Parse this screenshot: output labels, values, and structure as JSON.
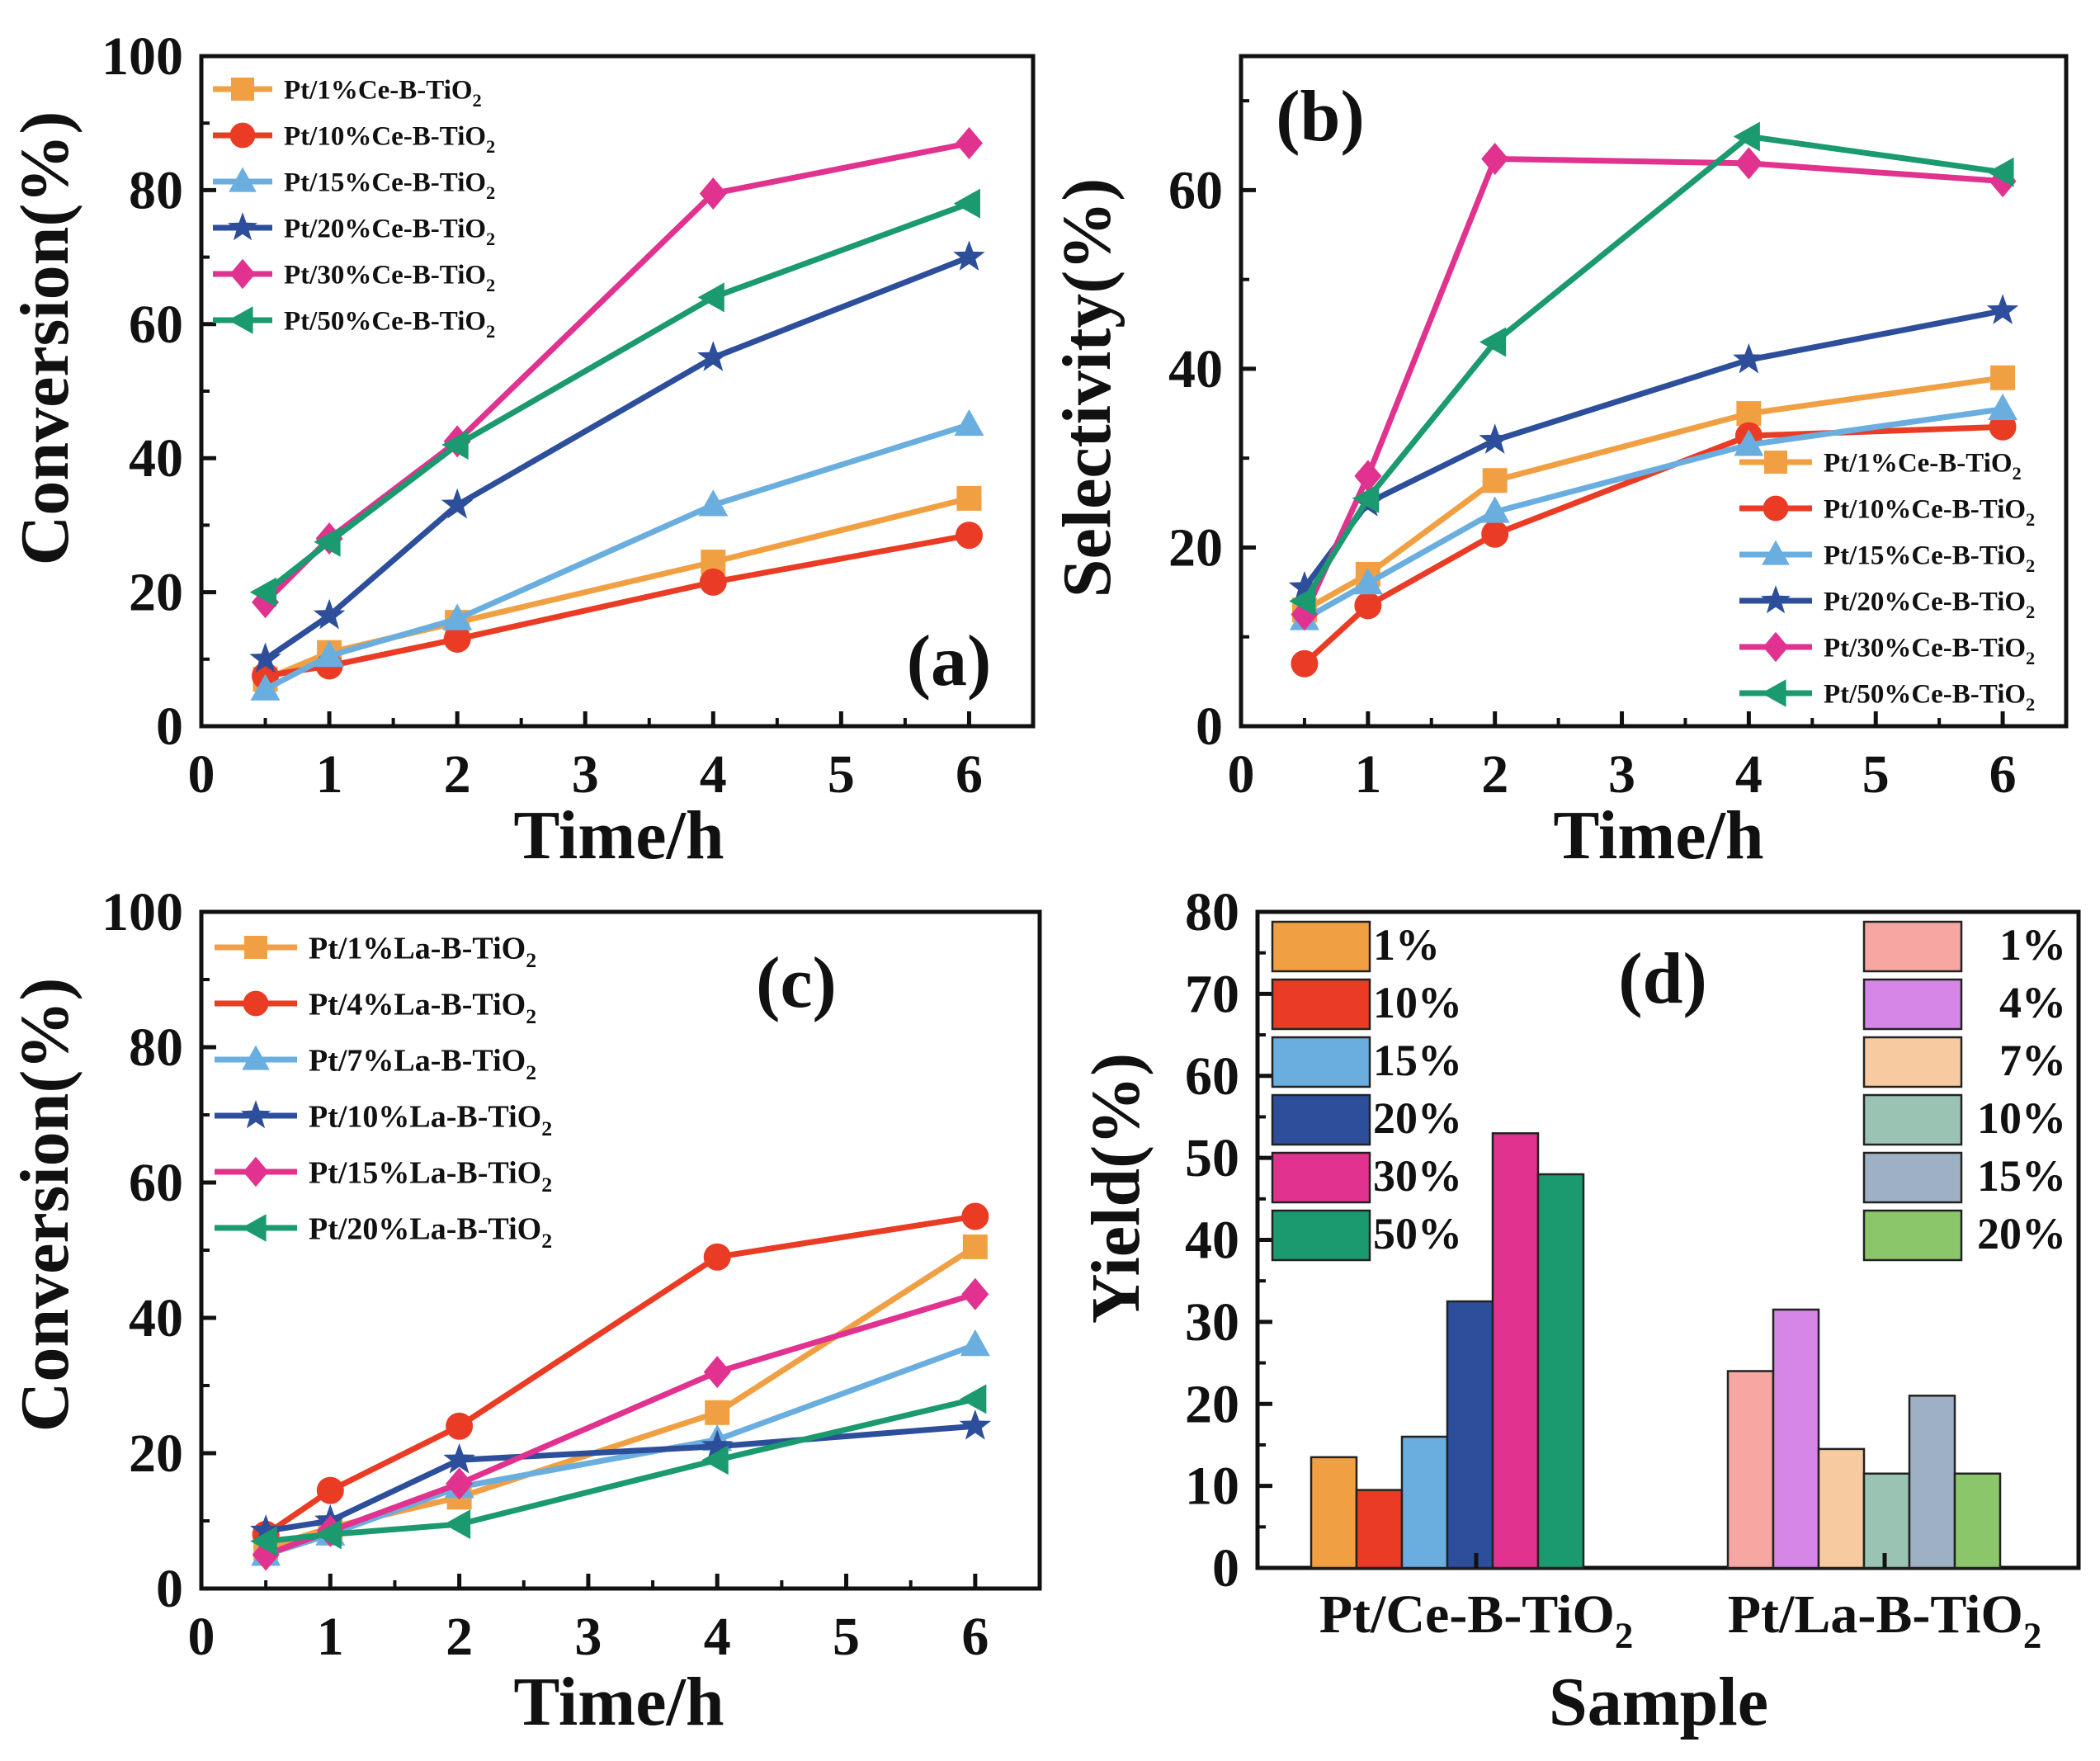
{
  "colors": {
    "ce1": "#f0a043",
    "ce10": "#ea3b24",
    "ce15": "#6aaee0",
    "ce20": "#2d4e9b",
    "ce30": "#e0328e",
    "ce50": "#1a9a6e",
    "la1": "#f6a7a2",
    "la4": "#d586e6",
    "la7": "#f8caa0",
    "la10": "#9bc3b4",
    "la15": "#9eb1c4",
    "la20": "#8cc66a"
  },
  "chart_data": [
    {
      "panel": "(a)",
      "type": "line",
      "xlabel": "Time/h",
      "ylabel": "Conversion(%)",
      "xlim": [
        0,
        6.5
      ],
      "ylim": [
        0,
        100
      ],
      "xticks": [
        0,
        1,
        2,
        3,
        4,
        5,
        6
      ],
      "yticks": [
        0,
        20,
        40,
        60,
        80,
        100
      ],
      "legend_position": "top-left",
      "series": [
        {
          "name": "Pt/1%Ce-B-TiO",
          "sub": "2",
          "marker": "square",
          "color": "#f0a043",
          "x": [
            0.5,
            1,
            2,
            4,
            6
          ],
          "y": [
            7,
            11,
            15.5,
            24.5,
            34
          ]
        },
        {
          "name": "Pt/10%Ce-B-TiO",
          "sub": "2",
          "marker": "circle",
          "color": "#ea3b24",
          "x": [
            0.5,
            1,
            2,
            4,
            6
          ],
          "y": [
            7.5,
            9,
            13,
            21.5,
            28.5
          ]
        },
        {
          "name": "Pt/15%Ce-B-TiO",
          "sub": "2",
          "marker": "triangle",
          "color": "#6aaee0",
          "x": [
            0.5,
            1,
            2,
            4,
            6
          ],
          "y": [
            5.5,
            10.5,
            16,
            33,
            45
          ]
        },
        {
          "name": "Pt/20%Ce-B-TiO",
          "sub": "2",
          "marker": "star",
          "color": "#2d4e9b",
          "x": [
            0.5,
            1,
            2,
            4,
            6
          ],
          "y": [
            10,
            16.5,
            33,
            55,
            70
          ]
        },
        {
          "name": "Pt/30%Ce-B-TiO",
          "sub": "2",
          "marker": "diamond",
          "color": "#e0328e",
          "x": [
            0.5,
            1,
            2,
            4,
            6
          ],
          "y": [
            18.5,
            28,
            42.5,
            79.5,
            87
          ]
        },
        {
          "name": "Pt/50%Ce-B-TiO",
          "sub": "2",
          "marker": "tri-left",
          "color": "#1a9a6e",
          "x": [
            0.5,
            1,
            2,
            4,
            6
          ],
          "y": [
            20,
            27.5,
            42,
            64,
            78
          ]
        }
      ]
    },
    {
      "panel": "(b)",
      "type": "line",
      "xlabel": "Time/h",
      "ylabel": "Selectivity(%)",
      "xlim": [
        0,
        6.5
      ],
      "ylim": [
        0,
        75
      ],
      "xticks": [
        0,
        1,
        2,
        3,
        4,
        5,
        6
      ],
      "yticks": [
        0,
        20,
        40,
        60
      ],
      "legend_position": "bottom-right",
      "series": [
        {
          "name": "Pt/1%Ce-B-TiO",
          "sub": "2",
          "marker": "square",
          "color": "#f0a043",
          "x": [
            0.5,
            1,
            2,
            4,
            6
          ],
          "y": [
            13,
            17,
            27.5,
            35,
            39
          ]
        },
        {
          "name": "Pt/10%Ce-B-TiO",
          "sub": "2",
          "marker": "circle",
          "color": "#ea3b24",
          "x": [
            0.5,
            1,
            2,
            4,
            6
          ],
          "y": [
            7,
            13.5,
            21.5,
            32.5,
            33.5
          ]
        },
        {
          "name": "Pt/15%Ce-B-TiO",
          "sub": "2",
          "marker": "triangle",
          "color": "#6aaee0",
          "x": [
            0.5,
            1,
            2,
            4,
            6
          ],
          "y": [
            12,
            16,
            24,
            31.5,
            35.5
          ]
        },
        {
          "name": "Pt/20%Ce-B-TiO",
          "sub": "2",
          "marker": "star",
          "color": "#2d4e9b",
          "x": [
            0.5,
            1,
            2,
            4,
            6
          ],
          "y": [
            15.5,
            25,
            32,
            41,
            46.5
          ]
        },
        {
          "name": "Pt/30%Ce-B-TiO",
          "sub": "2",
          "marker": "diamond",
          "color": "#e0328e",
          "x": [
            0.5,
            1,
            2,
            4,
            6
          ],
          "y": [
            12.5,
            28,
            63.5,
            63,
            61
          ]
        },
        {
          "name": "Pt/50%Ce-B-TiO",
          "sub": "2",
          "marker": "tri-left",
          "color": "#1a9a6e",
          "x": [
            0.5,
            1,
            2,
            4,
            6
          ],
          "y": [
            14,
            25.5,
            43,
            66,
            62
          ]
        }
      ]
    },
    {
      "panel": "(c)",
      "type": "line",
      "xlabel": "Time/h",
      "ylabel": "Conversion(%)",
      "xlim": [
        0,
        6.5
      ],
      "ylim": [
        0,
        100
      ],
      "xticks": [
        0,
        1,
        2,
        3,
        4,
        5,
        6
      ],
      "yticks": [
        0,
        20,
        40,
        60,
        80,
        100
      ],
      "legend_position": "top-left",
      "series": [
        {
          "name": "Pt/1%La-B-TiO",
          "sub": "2",
          "marker": "square",
          "color": "#f0a043",
          "x": [
            0.5,
            1,
            2,
            4,
            6
          ],
          "y": [
            6,
            9,
            13.5,
            26,
            50.5
          ]
        },
        {
          "name": "Pt/4%La-B-TiO",
          "sub": "2",
          "marker": "circle",
          "color": "#ea3b24",
          "x": [
            0.5,
            1,
            2,
            4,
            6
          ],
          "y": [
            8,
            14.5,
            24,
            49,
            55
          ]
        },
        {
          "name": "Pt/7%La-B-TiO",
          "sub": "2",
          "marker": "triangle",
          "color": "#6aaee0",
          "x": [
            0.5,
            1,
            2,
            4,
            6
          ],
          "y": [
            5,
            8,
            15,
            22,
            36
          ]
        },
        {
          "name": "Pt/10%La-B-TiO",
          "sub": "2",
          "marker": "star",
          "color": "#2d4e9b",
          "x": [
            0.5,
            1,
            2,
            4,
            6
          ],
          "y": [
            8.5,
            10,
            19,
            21,
            24
          ]
        },
        {
          "name": "Pt/15%La-B-TiO",
          "sub": "2",
          "marker": "diamond",
          "color": "#e0328e",
          "x": [
            0.5,
            1,
            2,
            4,
            6
          ],
          "y": [
            5,
            8.5,
            15.5,
            32,
            43.5
          ]
        },
        {
          "name": "Pt/20%La-B-TiO",
          "sub": "2",
          "marker": "tri-left",
          "color": "#1a9a6e",
          "x": [
            0.5,
            1,
            2,
            4,
            6
          ],
          "y": [
            7,
            8,
            9.5,
            19,
            28
          ]
        }
      ]
    },
    {
      "panel": "(d)",
      "type": "bar",
      "xlabel": "Sample",
      "ylabel": "Yield(%)",
      "ylim": [
        0,
        80
      ],
      "yticks": [
        0,
        10,
        20,
        30,
        40,
        50,
        60,
        70,
        80
      ],
      "categories": [
        {
          "name": "Pt/Ce-B-TiO",
          "sub": "2"
        },
        {
          "name": "Pt/La-B-TiO",
          "sub": "2"
        }
      ],
      "groups": [
        {
          "legend_position": "top-left",
          "bars": [
            {
              "label": "1%",
              "value": 13.5,
              "color": "#f0a043"
            },
            {
              "label": "10%",
              "value": 9.5,
              "color": "#ea3b24"
            },
            {
              "label": "15%",
              "value": 16,
              "color": "#6aaee0"
            },
            {
              "label": "20%",
              "value": 32.5,
              "color": "#2d4e9b"
            },
            {
              "label": "30%",
              "value": 53,
              "color": "#e0328e"
            },
            {
              "label": "50%",
              "value": 48,
              "color": "#1a9a6e"
            }
          ]
        },
        {
          "legend_position": "top-right",
          "bars": [
            {
              "label": "1%",
              "value": 24,
              "color": "#f6a7a2"
            },
            {
              "label": "4%",
              "value": 31.5,
              "color": "#d586e6"
            },
            {
              "label": "7%",
              "value": 14.5,
              "color": "#f8caa0"
            },
            {
              "label": "10%",
              "value": 11.5,
              "color": "#9bc3b4"
            },
            {
              "label": "15%",
              "value": 21,
              "color": "#9eb1c4"
            },
            {
              "label": "20%",
              "value": 11.5,
              "color": "#8cc66a"
            }
          ]
        }
      ]
    }
  ]
}
